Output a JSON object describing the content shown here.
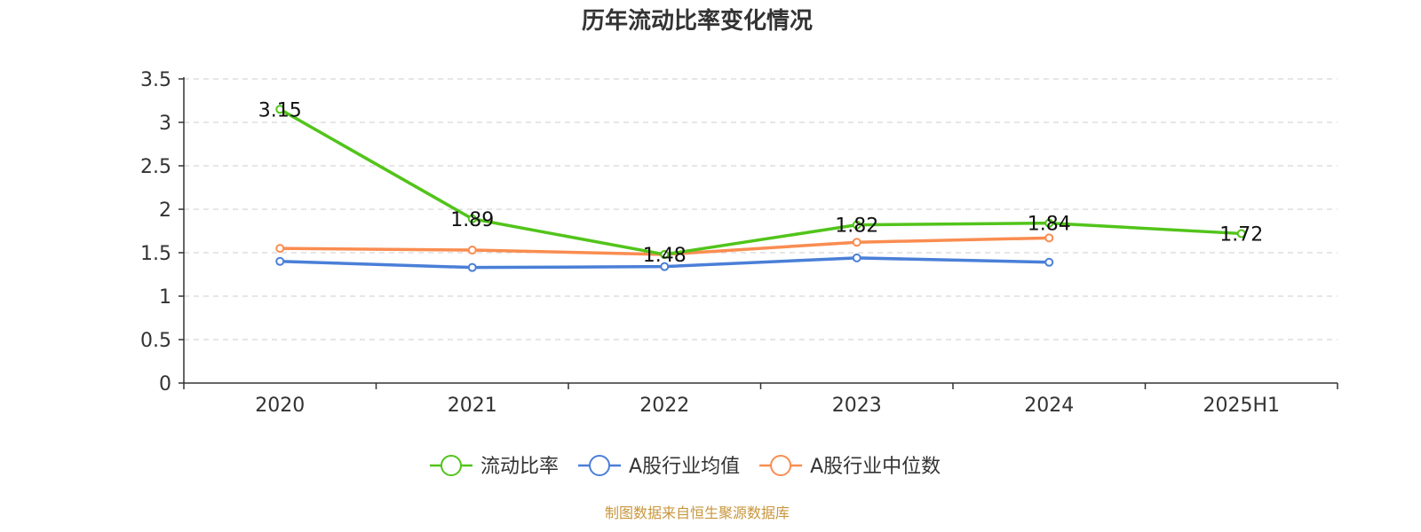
{
  "chart_data": {
    "type": "line",
    "title": "历年流动比率变化情况",
    "categories": [
      "2020",
      "2021",
      "2022",
      "2023",
      "2024",
      "2025H1"
    ],
    "ylim": [
      0,
      3.5
    ],
    "yticks": [
      "0",
      "0.5",
      "1",
      "1.5",
      "2",
      "2.5",
      "3",
      "3.5"
    ],
    "grid": true,
    "legend_position": "bottom",
    "series": [
      {
        "name": "流动比率",
        "color": "#52c41a",
        "values": [
          3.15,
          1.89,
          1.48,
          1.82,
          1.84,
          1.72
        ],
        "labels": [
          "3.15",
          "1.89",
          "1.48",
          "1.82",
          "1.84",
          "1.72"
        ]
      },
      {
        "name": "A股行业均值",
        "color": "#4a7fd8",
        "values": [
          1.4,
          1.33,
          1.34,
          1.44,
          1.39,
          null
        ]
      },
      {
        "name": "A股行业中位数",
        "color": "#fa8c50",
        "values": [
          1.55,
          1.53,
          1.48,
          1.62,
          1.67,
          null
        ]
      }
    ]
  },
  "source": {
    "text": "制图数据来自恒生聚源数据库",
    "color": "#c8963c"
  }
}
